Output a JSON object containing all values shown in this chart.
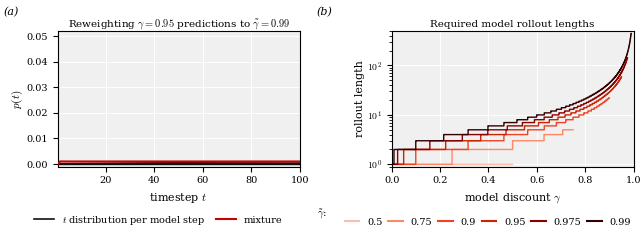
{
  "title_a": "Reweighting $\\gamma = 0.95$ predictions to $\\tilde{\\gamma} = 0.99$",
  "title_b": "Required model rollout lengths",
  "xlabel_a": "timestep $t$",
  "ylabel_a": "$p(t)$",
  "xlabel_b": "model discount $\\gamma$",
  "ylabel_b": "rollout length",
  "gamma": 0.95,
  "gamma_tilde": 0.99,
  "n_steps": 10,
  "t_max": 100,
  "gamma_tilde_values": [
    0.5,
    0.75,
    0.9,
    0.95,
    0.975,
    0.99
  ],
  "gamma_tilde_colors": [
    "#FFBBAA",
    "#FF8866",
    "#EE4422",
    "#CC2200",
    "#880000",
    "#330000"
  ],
  "gamma_tilde_labels": [
    "0.5",
    "0.75",
    "0.9",
    "0.95",
    "0.975",
    "0.99"
  ],
  "background_color": "#F0F0F0",
  "black_line_color": "#111111",
  "red_line_color": "#CC0000"
}
